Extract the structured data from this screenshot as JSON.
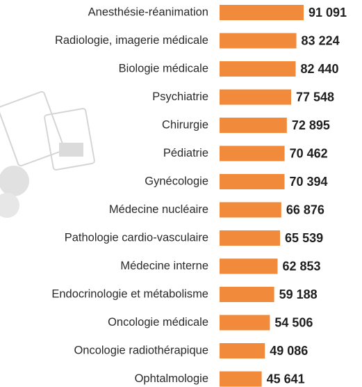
{
  "chart_data": {
    "type": "bar",
    "orientation": "horizontal",
    "color": "#f28a3c",
    "categories": [
      "Anesthésie-réanimation",
      "Radiologie, imagerie médicale",
      "Biologie médicale",
      "Psychiatrie",
      "Chirurgie",
      "Pédiatrie",
      "Gynécologie",
      "Médecine nucléaire",
      "Pathologie cardio-vasculaire",
      "Médecine interne",
      "Endocrinologie et métabolisme",
      "Oncologie médicale",
      "Oncologie radiothérapique",
      "Ophtalmologie"
    ],
    "values": [
      91091,
      83224,
      82440,
      77548,
      72895,
      70462,
      70394,
      66876,
      65539,
      62853,
      59188,
      54506,
      49086,
      45641
    ],
    "value_labels": [
      "91 091",
      "83 224",
      "82 440",
      "77 548",
      "72 895",
      "70 462",
      "70 394",
      "66 876",
      "65 539",
      "62 853",
      "59 188",
      "54 506",
      "49 086",
      "45 641"
    ]
  }
}
